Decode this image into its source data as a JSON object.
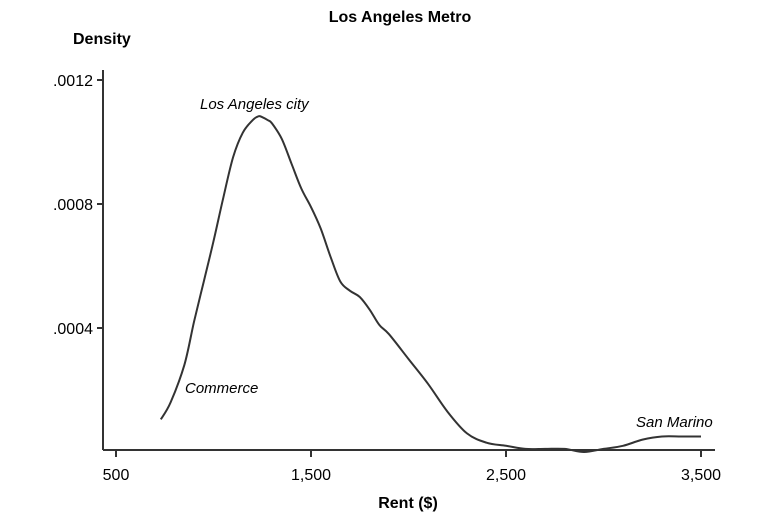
{
  "chart_data": {
    "type": "line",
    "title": "Los Angeles Metro",
    "ylabel": "Density",
    "xlabel": "Rent ($)",
    "xlim": [
      500,
      3500
    ],
    "ylim": [
      0,
      0.0012
    ],
    "x_ticks": [
      500,
      1500,
      2500,
      3500
    ],
    "x_tick_labels": [
      "500",
      "1,500",
      "2,500",
      "3,500"
    ],
    "y_ticks": [
      0.0004,
      0.0008,
      0.0012
    ],
    "y_tick_labels": [
      ".0004",
      ".0008",
      ".0012"
    ],
    "grid": false,
    "series": [
      {
        "x": [
          730,
          780,
          850,
          900,
          950,
          1000,
          1050,
          1100,
          1150,
          1200,
          1230,
          1250,
          1280,
          1300,
          1350,
          1400,
          1450,
          1500,
          1550,
          1600,
          1650,
          1700,
          1750,
          1800,
          1850,
          1900,
          2000,
          2100,
          2200,
          2300,
          2400,
          2500,
          2600,
          2700,
          2800,
          2900,
          3000,
          3100,
          3200,
          3300,
          3400,
          3500
        ],
        "y": [
          0.000105,
          0.00016,
          0.00028,
          0.00042,
          0.00055,
          0.00068,
          0.00082,
          0.00095,
          0.00103,
          0.00107,
          0.001083,
          0.00108,
          0.00107,
          0.00106,
          0.00101,
          0.00093,
          0.00085,
          0.00079,
          0.00072,
          0.00063,
          0.00055,
          0.00052,
          0.0005,
          0.00046,
          0.00041,
          0.00038,
          0.0003,
          0.00022,
          0.00013,
          6e-05,
          3e-05,
          2e-05,
          1e-05,
          1e-05,
          1e-05,
          0.0,
          1e-05,
          2e-05,
          4e-05,
          5e-05,
          5e-05,
          5e-05
        ]
      }
    ],
    "annotations": [
      "Los Angeles city",
      "Commerce",
      "San Marino"
    ]
  },
  "colors": {
    "line": "#333333",
    "axis": "#333333",
    "text": "#111111"
  }
}
